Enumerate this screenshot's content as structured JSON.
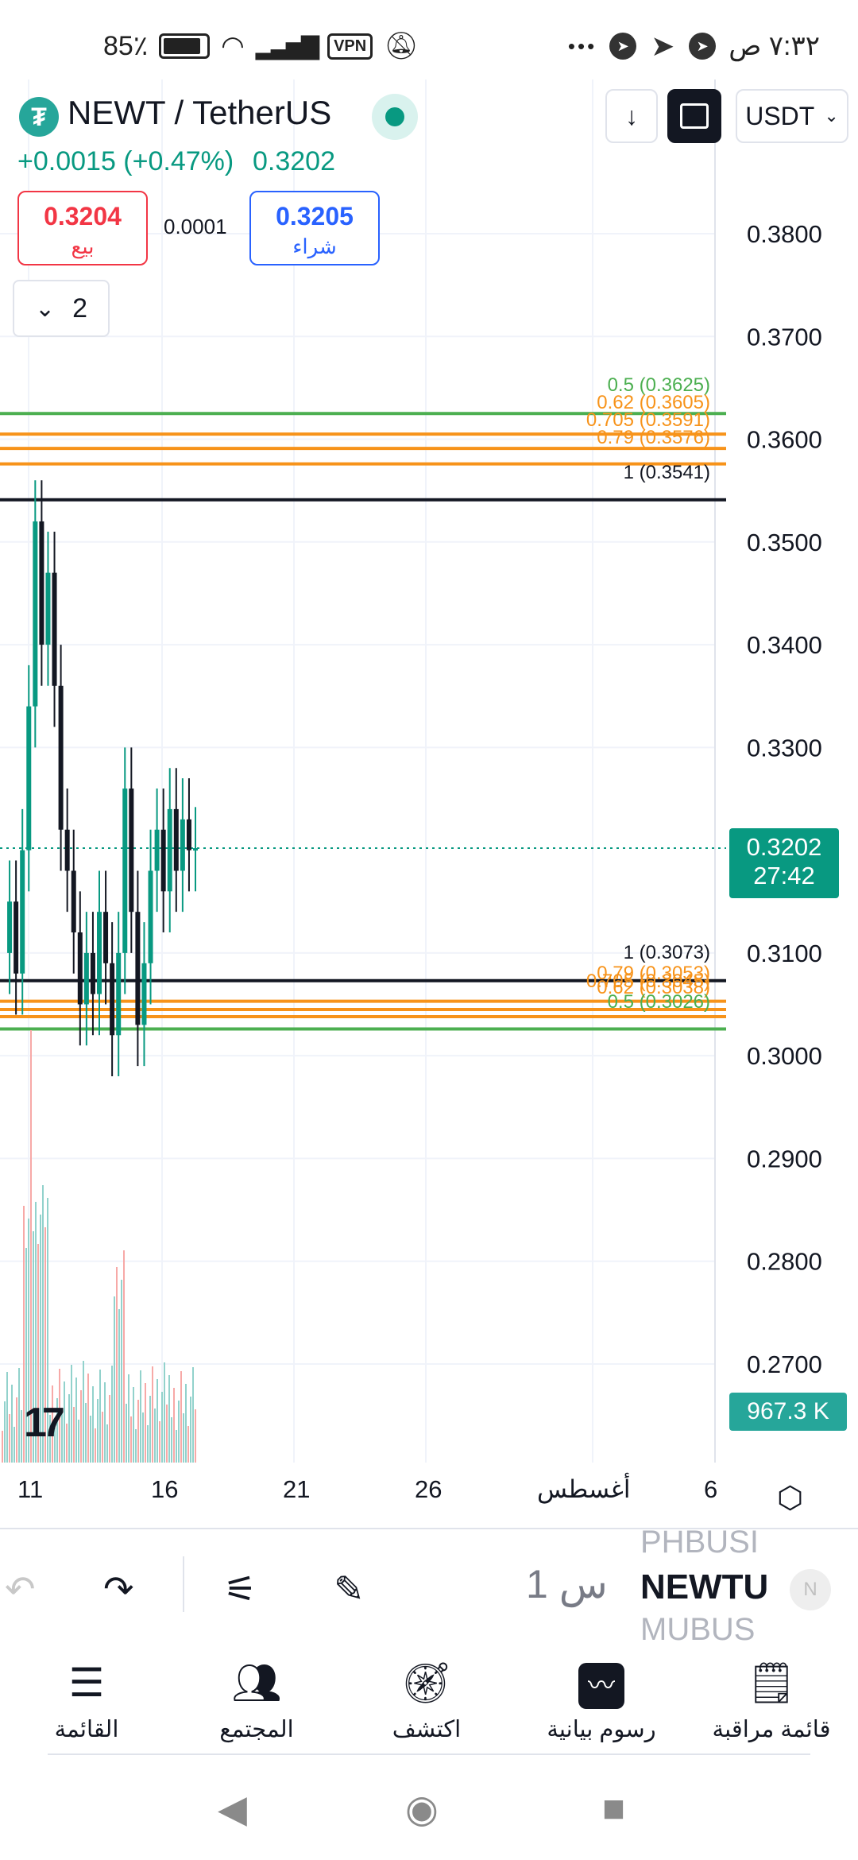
{
  "status_bar": {
    "battery": "85٪",
    "vpn": "VPN",
    "time": "٧:٣٢ ص",
    "more": "•••"
  },
  "header": {
    "symbol": "NEWT / TetherUS",
    "logo_glyph": "₮",
    "currency": "USDT",
    "change": "+0.0015 (+0.47%)",
    "last_price": "0.3202",
    "sell_price": "0.3204",
    "sell_label": "بيع",
    "spread": "0.0001",
    "buy_price": "0.3205",
    "buy_label": "شراء",
    "layers_count": "2",
    "icons": [
      "arrow-down-icon",
      "fullscreen-icon",
      "chevron-down-icon"
    ]
  },
  "colors": {
    "up": "#089981",
    "down": "#f23645",
    "buy": "#2962ff",
    "fib_green": "#4caf50",
    "fib_orange": "#f7931a",
    "fib_black": "#131722"
  },
  "chart_data": {
    "type": "candlestick",
    "price_axis": [
      "0.3800",
      "0.3700",
      "0.3600",
      "0.3500",
      "0.3400",
      "0.3300",
      "0.3100",
      "0.3000",
      "0.2900",
      "0.2800",
      "0.2700"
    ],
    "ylim": [
      0.265,
      0.39
    ],
    "time_axis": [
      "11",
      "16",
      "21",
      "26",
      "أغسطس",
      "6"
    ],
    "last_price_tag": "0.3202",
    "countdown": "27:42",
    "volume_tag": "967.3 K",
    "fib_top": [
      {
        "level": "0.5 (0.3625)",
        "value": 0.3625,
        "color": "#4caf50"
      },
      {
        "level": "0.62 (0.3605)",
        "value": 0.3605,
        "color": "#f7931a"
      },
      {
        "level": "0.705 (0.3591)",
        "value": 0.3591,
        "color": "#f7931a"
      },
      {
        "level": "0.79 (0.3576)",
        "value": 0.3576,
        "color": "#f7931a"
      },
      {
        "level": "1 (0.3541)",
        "value": 0.3541,
        "color": "#131722"
      }
    ],
    "fib_bottom": [
      {
        "level": "1 (0.3073)",
        "value": 0.3073,
        "color": "#131722"
      },
      {
        "level": "0.79 (0.3053)",
        "value": 0.3053,
        "color": "#f7931a"
      },
      {
        "level": "0.705 (0.3045)",
        "value": 0.3045,
        "color": "#f7931a"
      },
      {
        "level": "0.62 (0.3038)",
        "value": 0.3038,
        "color": "#f7931a"
      },
      {
        "level": "0.5 (0.3026)",
        "value": 0.3026,
        "color": "#4caf50"
      }
    ],
    "price_series": [
      0.31,
      0.315,
      0.308,
      0.32,
      0.334,
      0.352,
      0.34,
      0.347,
      0.336,
      0.322,
      0.318,
      0.312,
      0.305,
      0.31,
      0.306,
      0.314,
      0.309,
      0.302,
      0.31,
      0.326,
      0.314,
      0.303,
      0.309,
      0.318,
      0.322,
      0.316,
      0.324,
      0.318,
      0.323,
      0.32,
      0.3202
    ]
  },
  "toolbar": {
    "interval": "1 س",
    "ticker_prev": "PHBUSI",
    "ticker_current": "NEWTU",
    "ticker_next": "MUBUS",
    "ticker_badge": "N",
    "icons": [
      "undo-icon",
      "redo-icon",
      "indicators-icon",
      "drawing-icon"
    ]
  },
  "nav": {
    "items": [
      {
        "label": "القائمة",
        "icon": "menu-icon"
      },
      {
        "label": "المجتمع",
        "icon": "community-icon"
      },
      {
        "label": "اكتشف",
        "icon": "compass-icon"
      },
      {
        "label": "رسوم بيانية",
        "icon": "chart-icon"
      },
      {
        "label": "قائمة مراقبة",
        "icon": "watchlist-icon"
      }
    ]
  }
}
